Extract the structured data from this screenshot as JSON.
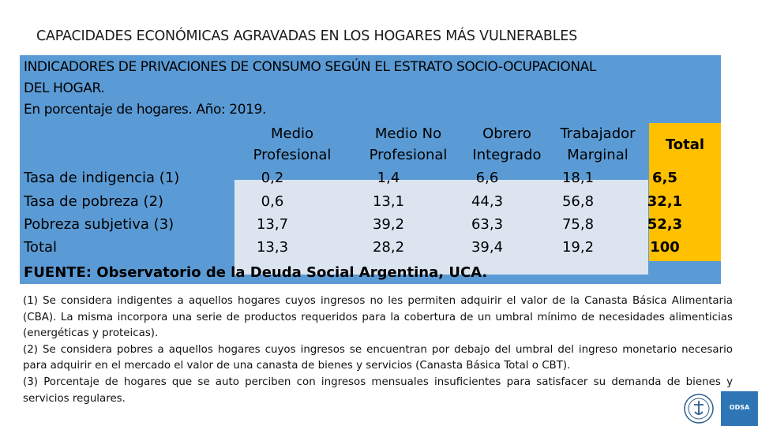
{
  "slide_title": "CAPACIDADES ECONÓMICAS AGRAVADAS EN LOS HOGARES MÁS VULNERABLES",
  "table": {
    "title_line1": "INDICADORES DE PRIVACIONES DE CONSUMO SEGÚN EL ESTRATO SOCIO-OCUPACIONAL",
    "title_line2": "DEL HOGAR.",
    "subtitle": "En porcentaje de hogares. Año: 2019.",
    "source": "FUENTE: Observatorio de la Deuda Social Argentina, UCA.",
    "colors": {
      "panel": "#5b9bd5",
      "cells": "#dce4f0",
      "total": "#ffc000"
    }
  },
  "chart_data": {
    "type": "table",
    "columns": [
      [
        "Medio",
        "Profesional"
      ],
      [
        "Medio No",
        "Profesional"
      ],
      [
        "Obrero",
        "Integrado"
      ],
      [
        "Trabajador",
        "Marginal"
      ],
      [
        "Total"
      ]
    ],
    "rows": [
      {
        "label": "Tasa de indigencia (1)",
        "values": [
          "0,2",
          "1,4",
          "6,6",
          "18,1",
          "6,5"
        ]
      },
      {
        "label": "Tasa de pobreza (2)",
        "values": [
          "0,6",
          "13,1",
          "44,3",
          "56,8",
          "32,1"
        ]
      },
      {
        "label": "Pobreza subjetiva (3)",
        "values": [
          "13,7",
          "39,2",
          "63,3",
          "75,8",
          "52,3"
        ]
      },
      {
        "label": "Total",
        "values": [
          "13,3",
          "28,2",
          "39,4",
          "19,2",
          "100"
        ]
      }
    ]
  },
  "notes": [
    "(1) Se considera indigentes a aquellos hogares cuyos ingresos no les permiten adquirir el valor de la Canasta Básica Alimentaria (CBA). La misma incorpora una serie de productos requeridos para la cobertura de un umbral mínimo de necesidades alimenticias (energéticas y proteicas).",
    "(2) Se considera pobres a aquellos hogares cuyos ingresos se encuentran por debajo del umbral del ingreso monetario necesario para adquirir en el mercado el valor de una canasta de bienes y servicios (Canasta Básica Total o CBT).",
    "(3) Porcentaje de hogares que se auto perciben con ingresos mensuales insuficientes para satisfacer su demanda de bienes y servicios regulares."
  ],
  "logos": {
    "seal_icon": "university-seal-icon",
    "badge_text": "ODSA"
  }
}
